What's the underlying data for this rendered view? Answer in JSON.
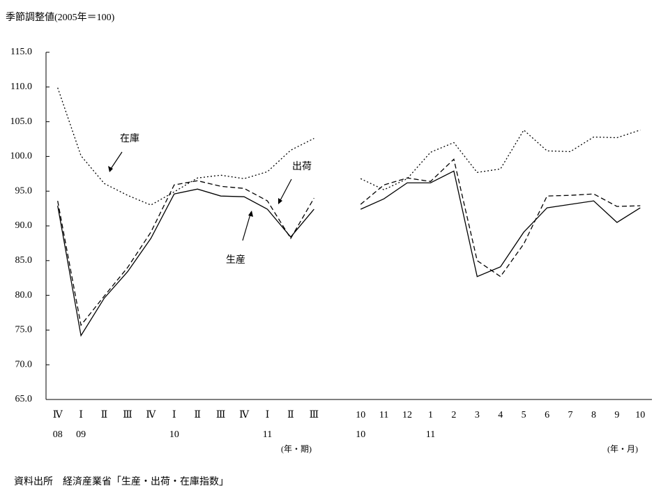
{
  "chart_data": {
    "type": "line",
    "title": "季節調整値(2005年＝100)",
    "source": "資料出所　経済産業省「生産・出荷・在庫指数」",
    "categories": [
      "Ⅳ",
      "Ⅰ",
      "Ⅱ",
      "Ⅲ",
      "Ⅳ",
      "Ⅰ",
      "Ⅱ",
      "Ⅲ",
      "Ⅳ",
      "Ⅰ",
      "Ⅱ",
      "Ⅲ",
      null,
      "10",
      "11",
      "12",
      "1",
      "2",
      "3",
      "4",
      "5",
      "6",
      "7",
      "8",
      "9",
      "10"
    ],
    "year_labels": [
      "08",
      "09",
      null,
      null,
      null,
      "10",
      null,
      null,
      null,
      "11",
      null,
      null,
      null,
      "10",
      null,
      null,
      "11",
      null,
      null,
      null,
      null,
      null,
      null,
      null,
      null,
      null
    ],
    "x_unit_labels": [
      "(年・期)",
      "(年・月)"
    ],
    "ylim": [
      65,
      115
    ],
    "yticks": [
      {
        "value": 65,
        "label": "65.0"
      },
      {
        "value": 70,
        "label": "70.0"
      },
      {
        "value": 75,
        "label": "75.0"
      },
      {
        "value": 80,
        "label": "80.0"
      },
      {
        "value": 85,
        "label": "85.0"
      },
      {
        "value": 90,
        "label": "90.0"
      },
      {
        "value": 95,
        "label": "95.0"
      },
      {
        "value": 100,
        "label": "100.0"
      },
      {
        "value": 105,
        "label": "105.0"
      },
      {
        "value": 110,
        "label": "110.0"
      },
      {
        "value": 115,
        "label": "115.0"
      }
    ],
    "series": [
      {
        "name": "生産",
        "color": "#000000",
        "dash": "solid",
        "values": [
          92.9,
          74.2,
          79.6,
          83.4,
          88.2,
          94.6,
          95.3,
          94.3,
          94.2,
          92.4,
          88.4,
          92.4,
          null,
          92.4,
          93.9,
          96.2,
          96.2,
          97.9,
          82.7,
          84.1,
          89.1,
          92.6,
          93.1,
          93.6,
          90.5,
          92.6
        ]
      },
      {
        "name": "出荷",
        "color": "#000000",
        "dash": "dashed",
        "values": [
          93.6,
          75.7,
          79.9,
          84.0,
          89.1,
          95.9,
          96.5,
          95.7,
          95.4,
          93.6,
          88.2,
          94.0,
          null,
          93.1,
          95.9,
          96.9,
          96.4,
          99.6,
          85.0,
          82.7,
          87.4,
          94.3,
          94.4,
          94.6,
          92.8,
          92.9
        ]
      },
      {
        "name": "在庫",
        "color": "#000000",
        "dash": "dotted",
        "values": [
          109.9,
          100.1,
          96.1,
          94.4,
          93.0,
          94.9,
          96.9,
          97.3,
          96.8,
          97.8,
          100.9,
          102.6,
          null,
          96.8,
          95.2,
          96.8,
          100.6,
          102.0,
          97.7,
          98.2,
          103.8,
          100.8,
          100.7,
          102.8,
          102.7,
          103.8
        ]
      }
    ]
  }
}
